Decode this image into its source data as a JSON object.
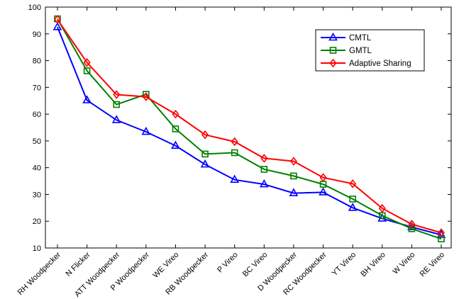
{
  "chart_data": {
    "type": "line",
    "categories": [
      "RH Woodpecker",
      "N Flicker",
      "ATT Woodpecker",
      "P Woodpecker",
      "WE Vireo",
      "RB Woodpecker",
      "P Vireo",
      "BC Vireo",
      "D Woodpecker",
      "RC Woodpecker",
      "YT Vireo",
      "BH Vireo",
      "W Vireo",
      "RE Vireo"
    ],
    "ylim": [
      10,
      100
    ],
    "yticks": [
      10,
      20,
      30,
      40,
      50,
      60,
      70,
      80,
      90,
      100
    ],
    "grid": false,
    "legend_position": "top-right",
    "series": [
      {
        "name": "CMTL",
        "color": "#0000ff",
        "marker": "triangle",
        "values": [
          92.5,
          65.2,
          57.8,
          53.4,
          48.2,
          41.2,
          35.5,
          33.8,
          30.5,
          30.8,
          25.0,
          21.0,
          17.8,
          14.9
        ]
      },
      {
        "name": "GMTL",
        "color": "#008000",
        "marker": "square",
        "values": [
          95.6,
          76.2,
          63.6,
          67.4,
          54.5,
          45.1,
          45.6,
          39.4,
          36.9,
          33.8,
          28.3,
          22.1,
          17.2,
          13.4
        ]
      },
      {
        "name": "Adaptive Sharing",
        "color": "#ff0000",
        "marker": "diamond",
        "values": [
          95.4,
          79.3,
          67.3,
          66.5,
          60.0,
          52.3,
          49.7,
          43.5,
          42.4,
          36.3,
          34.0,
          24.8,
          18.9,
          15.7
        ]
      }
    ]
  }
}
